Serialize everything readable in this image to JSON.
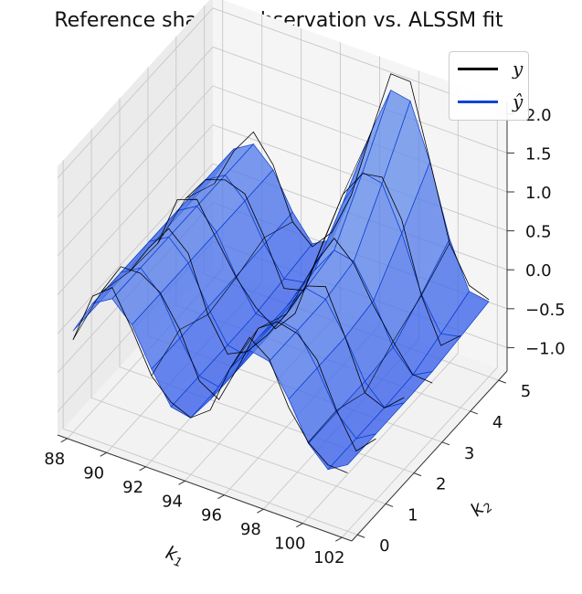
{
  "chart_data": {
    "type": "surface3d",
    "title": "Reference shape I: observation vs. ALSSM fit",
    "xlabel": "k1",
    "ylabel": "k2",
    "zlabel": "",
    "xlabel_display": "k",
    "xlabel_sub": "1",
    "ylabel_display": "k",
    "ylabel_sub": "2",
    "xlim": [
      87.5,
      102.5
    ],
    "ylim": [
      -0.2,
      5.3
    ],
    "zlim": [
      -1.3,
      2.15
    ],
    "xticks": [
      88,
      90,
      92,
      94,
      96,
      98,
      100,
      102
    ],
    "yticks": [
      0,
      1,
      2,
      3,
      4,
      5
    ],
    "zticks": [
      2.0,
      1.5,
      1.0,
      0.5,
      0.0,
      -0.5,
      -1.0
    ],
    "xtick_labels": [
      "88",
      "90",
      "92",
      "94",
      "96",
      "98",
      "100",
      "102"
    ],
    "ytick_labels": [
      "0",
      "1",
      "2",
      "3",
      "4",
      "5"
    ],
    "ztick_labels": [
      "2.0",
      "1.5",
      "1.0",
      "0.5",
      "0.0",
      "−0.5",
      "−1.0"
    ],
    "grid": true,
    "legend_position": "upper-right",
    "series": [
      {
        "name": "y",
        "label": "y",
        "color": "#000000",
        "style": "wireframe"
      },
      {
        "name": "ŷ",
        "label": "ŷ",
        "color": "#0b45d6",
        "style": "surface"
      }
    ],
    "surface_equation": "0.6*sin(2π(k1-88)/7.5) + 1.4*exp(-((k1-97.5)²/8 + (k2-5)²/1.5))",
    "k1_values": [
      88,
      89,
      90,
      91,
      92,
      93,
      94,
      95,
      96,
      97,
      98,
      99,
      100,
      101,
      102
    ],
    "k2_values": [
      0,
      1,
      2,
      3,
      4,
      5
    ]
  }
}
